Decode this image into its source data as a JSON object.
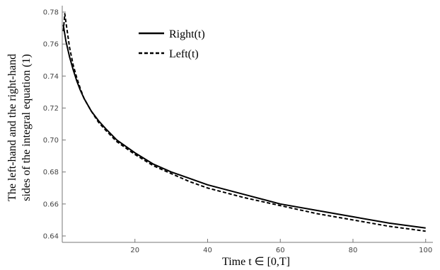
{
  "chart_data": {
    "type": "line",
    "xlabel": "Time t ∈ [0,T]",
    "ylabel_line1": "The left-hand and the right-hand",
    "ylabel_line2": "sides of the integral equation (1)",
    "xlim": [
      0,
      102
    ],
    "ylim": [
      0.636,
      0.784
    ],
    "x_ticks": [
      20,
      40,
      60,
      80,
      100
    ],
    "x_tick_labels": [
      "20",
      "40",
      "60",
      "80",
      "100"
    ],
    "y_ticks": [
      0.64,
      0.66,
      0.68,
      0.7,
      0.72,
      0.74,
      0.76,
      0.78
    ],
    "y_tick_labels": [
      "0.64",
      "0.66",
      "0.68",
      "0.70",
      "0.72",
      "0.74",
      "0.76",
      "0.78"
    ],
    "legend_position": "top-center",
    "series": [
      {
        "name": "Right(t)",
        "style": "solid",
        "color": "#000000",
        "x": [
          0.3,
          1,
          2,
          3,
          4,
          5,
          6,
          8,
          10,
          12,
          15,
          20,
          25,
          30,
          35,
          40,
          50,
          60,
          70,
          80,
          90,
          100
        ],
        "y": [
          0.772,
          0.762,
          0.752,
          0.744,
          0.737,
          0.731,
          0.726,
          0.718,
          0.712,
          0.707,
          0.7,
          0.692,
          0.685,
          0.68,
          0.676,
          0.672,
          0.666,
          0.66,
          0.656,
          0.652,
          0.648,
          0.645
        ]
      },
      {
        "name": "Left(t)",
        "style": "dashed",
        "color": "#000000",
        "x": [
          0.3,
          0.7,
          1,
          2,
          3,
          4,
          5,
          6,
          8,
          10,
          12,
          15,
          20,
          25,
          30,
          35,
          40,
          50,
          60,
          70,
          80,
          90,
          100
        ],
        "y": [
          0.768,
          0.779,
          0.774,
          0.758,
          0.747,
          0.739,
          0.732,
          0.726,
          0.718,
          0.711,
          0.706,
          0.699,
          0.691,
          0.684,
          0.679,
          0.674,
          0.67,
          0.664,
          0.659,
          0.654,
          0.65,
          0.646,
          0.643
        ]
      }
    ]
  }
}
